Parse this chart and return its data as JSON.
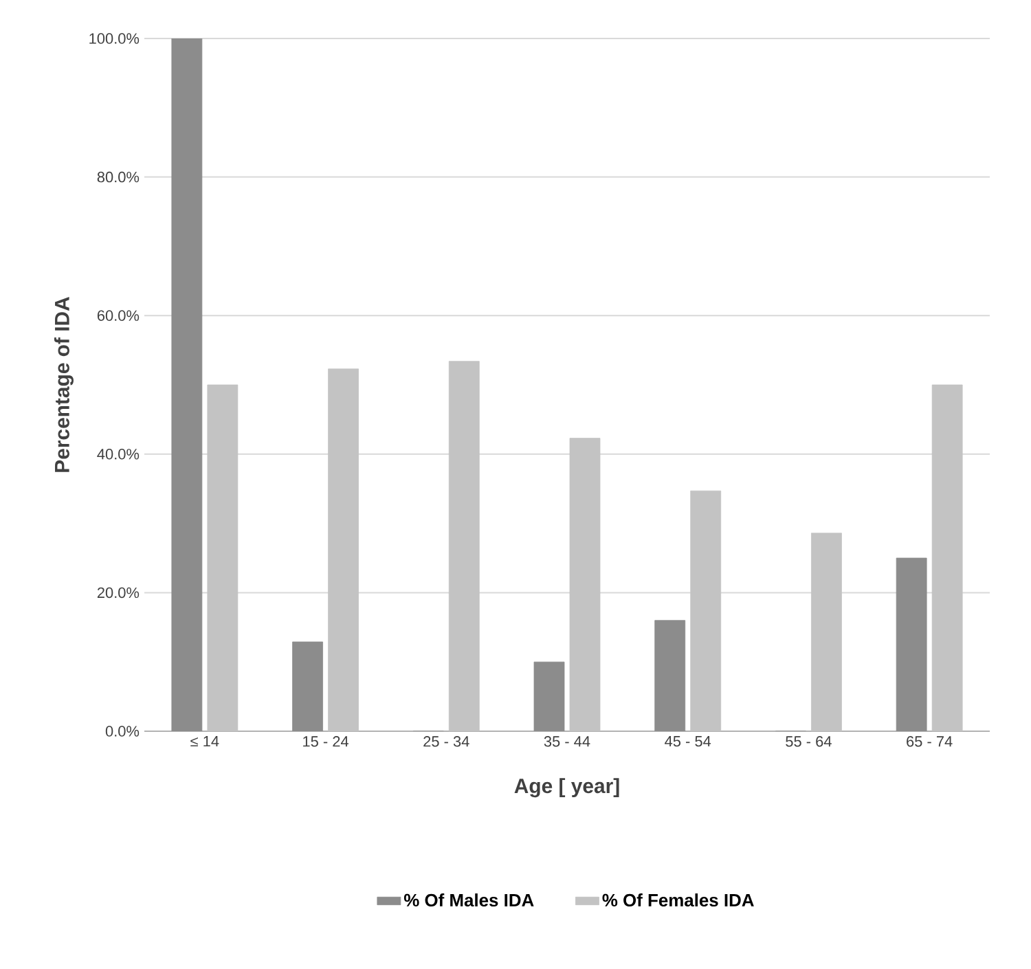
{
  "chart_data": {
    "type": "bar",
    "xlabel": "Age [ year]",
    "ylabel": "Percentage of IDA",
    "categories": [
      "≤ 14",
      "15 - 24",
      "25 - 34",
      "35 - 44",
      "45 - 54",
      "55 - 64",
      "65 - 74"
    ],
    "series": [
      {
        "name": "% Of Males IDA",
        "color": "#8c8c8c",
        "values": [
          100,
          12.9,
          0,
          10,
          16,
          0,
          25
        ]
      },
      {
        "name": "% Of Females IDA",
        "color": "#c3c3c3",
        "values": [
          50,
          52.3,
          53.4,
          42.3,
          34.7,
          28.6,
          50
        ]
      }
    ],
    "ylim": [
      0,
      100
    ],
    "yticks": [
      {
        "value": 0,
        "label": "0.0%"
      },
      {
        "value": 20,
        "label": "20.0%"
      },
      {
        "value": 40,
        "label": "40.0%"
      },
      {
        "value": 60,
        "label": "60.0%"
      },
      {
        "value": 80,
        "label": "80.0%"
      },
      {
        "value": 100,
        "label": "100.0%"
      }
    ],
    "grid": "y",
    "legend": "bottom"
  }
}
